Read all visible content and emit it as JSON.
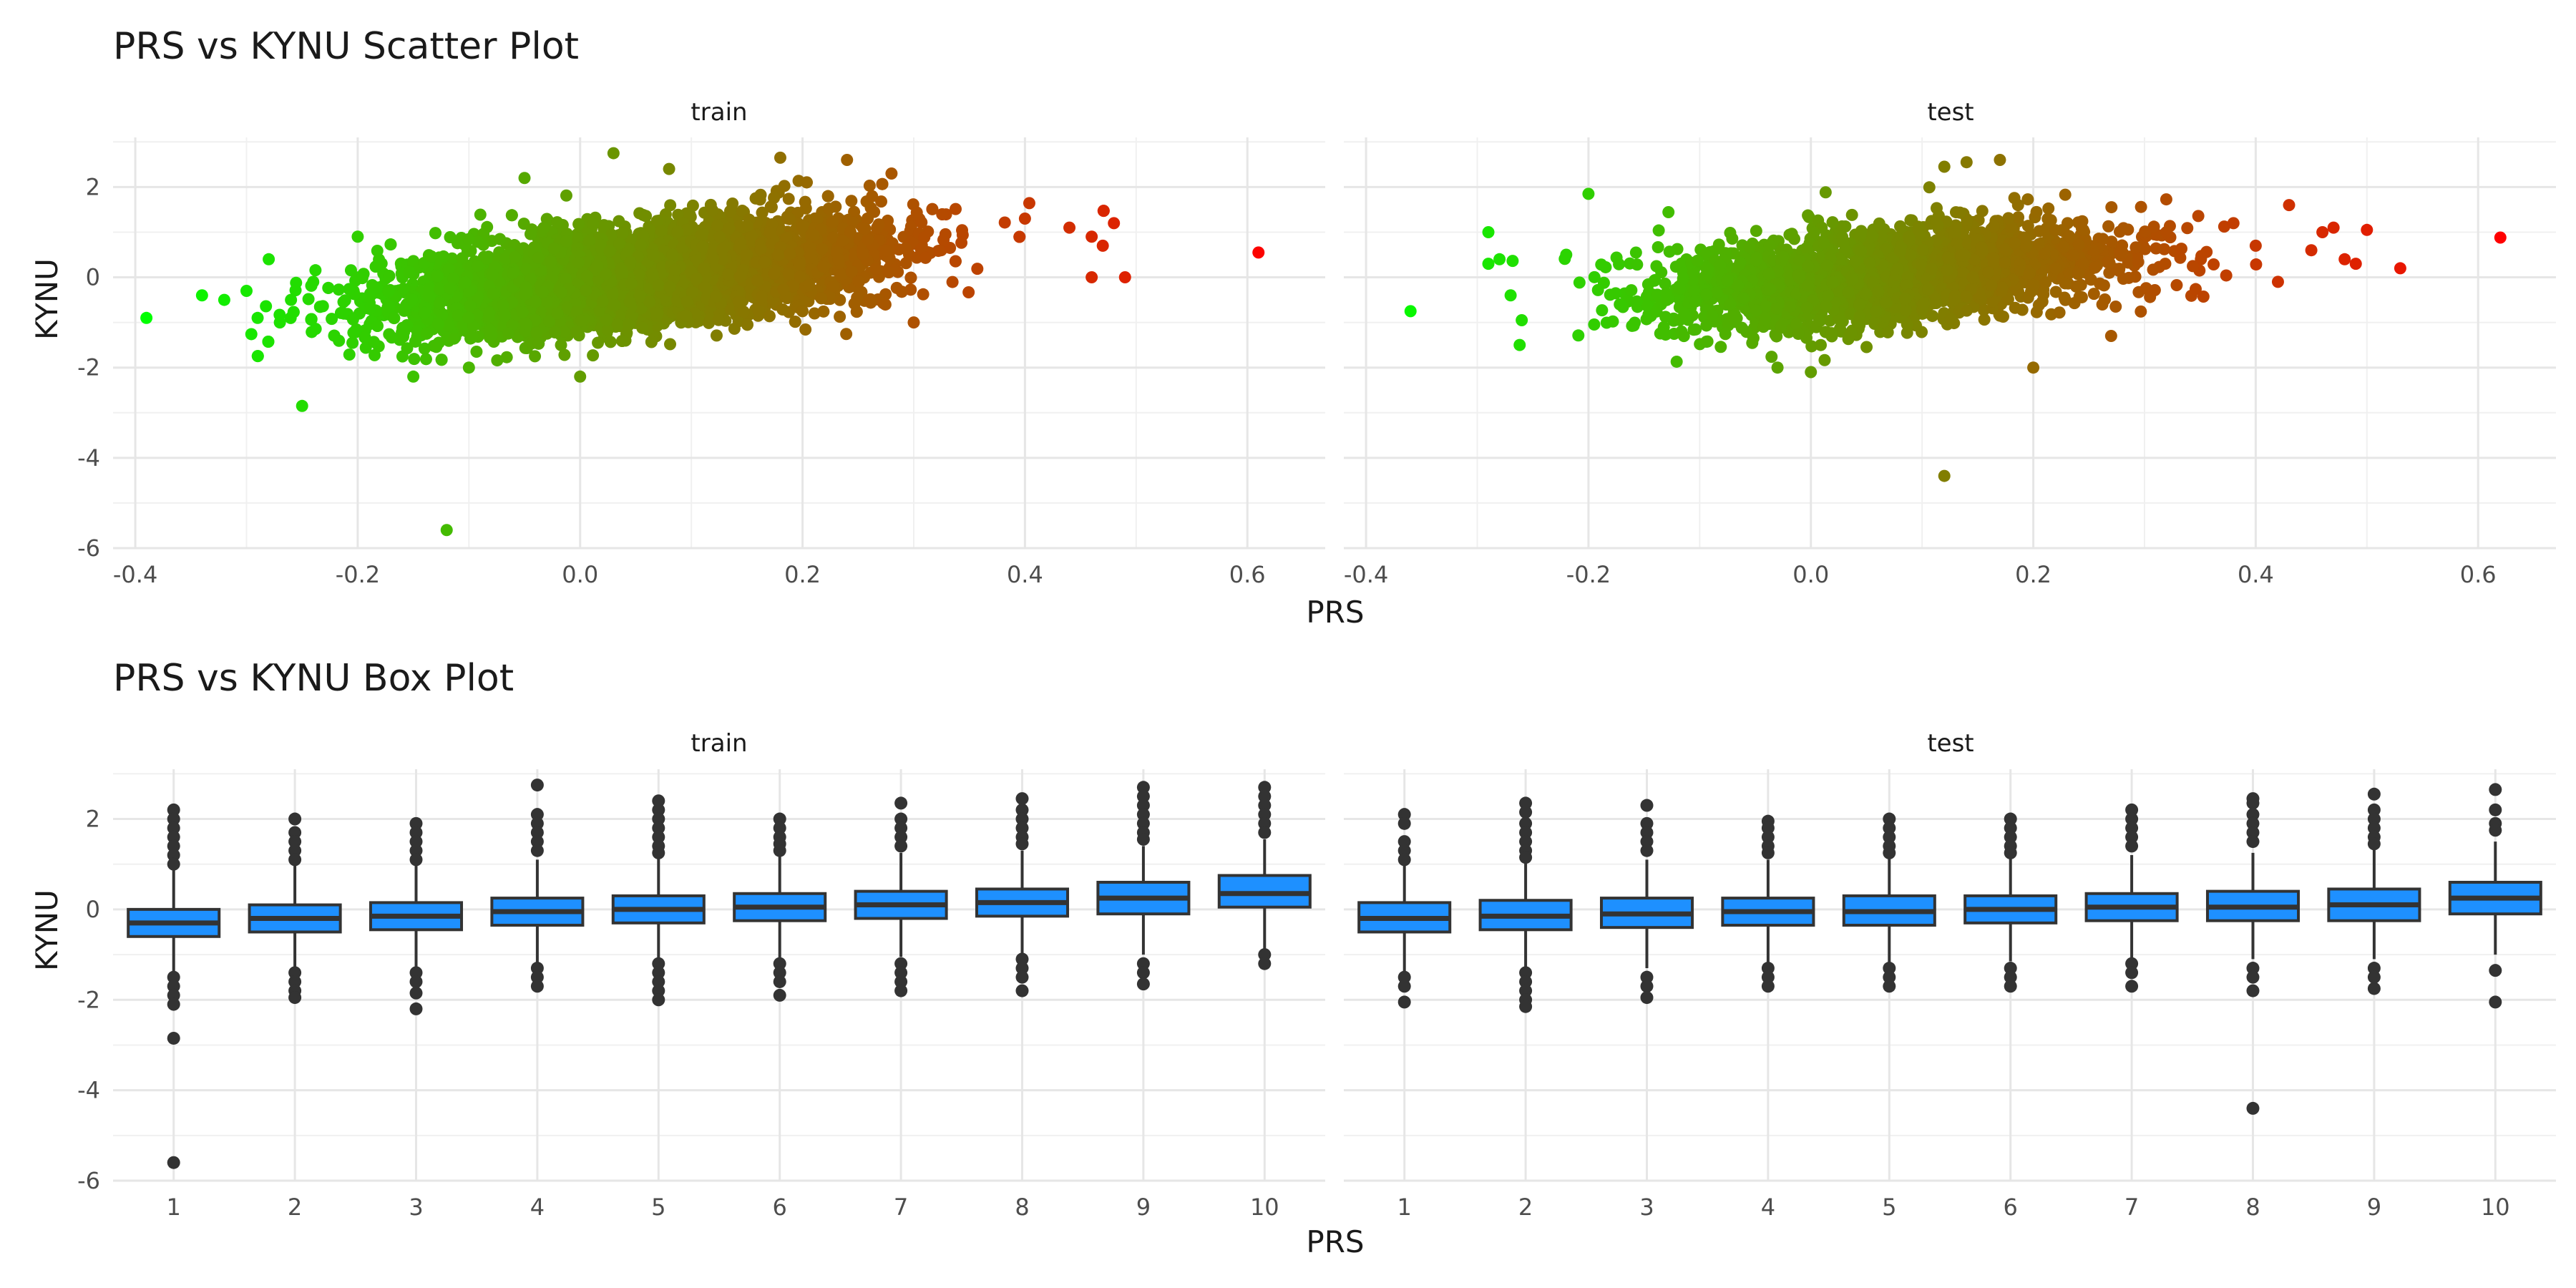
{
  "chart_data": [
    {
      "type": "scatter",
      "title": "PRS vs KYNU Scatter Plot",
      "xlabel": "PRS",
      "ylabel": "KYNU",
      "facets": [
        "train",
        "test"
      ],
      "xlim": [
        -0.42,
        0.67
      ],
      "ylim": [
        -6.0,
        3.1
      ],
      "x_ticks": [
        -0.4,
        -0.2,
        0.0,
        0.2,
        0.4,
        0.6
      ],
      "x_tick_labels": [
        "-0.4",
        "-0.2",
        "0.0",
        "0.2",
        "0.4",
        "0.6"
      ],
      "y_ticks": [
        -6,
        -4,
        -2,
        0,
        2
      ],
      "y_tick_labels": [
        "-6",
        "-4",
        "-2",
        "0",
        "2"
      ],
      "grid": true,
      "color_scale": {
        "low": "#00ff00",
        "high": "#ff0000",
        "domain": [
          -0.39,
          0.62
        ]
      },
      "series": [
        {
          "points": [
            [
              -0.39,
              -0.9
            ],
            [
              -0.34,
              -0.4
            ],
            [
              -0.32,
              -0.5
            ],
            [
              -0.3,
              -0.3
            ],
            [
              -0.29,
              -0.9
            ],
            [
              -0.28,
              0.4
            ],
            [
              -0.27,
              -1.0
            ],
            [
              -0.26,
              -0.5
            ],
            [
              -0.25,
              -2.85
            ],
            [
              -0.24,
              -0.1
            ],
            [
              -0.12,
              -5.6
            ],
            [
              -0.15,
              -2.2
            ],
            [
              -0.2,
              0.9
            ],
            [
              -0.1,
              -2.0
            ],
            [
              -0.05,
              2.2
            ],
            [
              0.03,
              2.75
            ],
            [
              0.08,
              2.4
            ],
            [
              0.18,
              2.65
            ],
            [
              0.24,
              2.6
            ],
            [
              0.28,
              2.3
            ],
            [
              0.3,
              -1.0
            ],
            [
              0.0,
              -2.2
            ],
            [
              0.4,
              1.3
            ],
            [
              0.44,
              1.1
            ],
            [
              0.46,
              0.9
            ],
            [
              0.47,
              0.7
            ],
            [
              0.48,
              1.2
            ],
            [
              0.49,
              0.0
            ],
            [
              0.46,
              0.0
            ],
            [
              0.61,
              0.55
            ]
          ],
          "cloud": {
            "x_mean": 0.05,
            "x_sd": 0.11,
            "slope": 2.5,
            "noise_sd": 0.52,
            "count": 5200
          }
        },
        {
          "points": [
            [
              -0.36,
              -0.75
            ],
            [
              -0.29,
              1.0
            ],
            [
              -0.29,
              0.3
            ],
            [
              -0.28,
              0.4
            ],
            [
              -0.27,
              -0.4
            ],
            [
              -0.26,
              -0.95
            ],
            [
              -0.2,
              1.85
            ],
            [
              -0.22,
              0.5
            ],
            [
              0.12,
              -4.4
            ],
            [
              -0.03,
              -2.0
            ],
            [
              0.0,
              -2.1
            ],
            [
              0.2,
              -2.0
            ],
            [
              0.27,
              -1.3
            ],
            [
              0.14,
              2.55
            ],
            [
              0.17,
              2.6
            ],
            [
              0.12,
              2.45
            ],
            [
              0.38,
              1.2
            ],
            [
              0.4,
              0.7
            ],
            [
              0.43,
              1.6
            ],
            [
              0.45,
              0.6
            ],
            [
              0.46,
              1.0
            ],
            [
              0.47,
              1.1
            ],
            [
              0.48,
              0.4
            ],
            [
              0.49,
              0.3
            ],
            [
              0.5,
              1.05
            ],
            [
              0.53,
              0.2
            ],
            [
              0.42,
              -0.1
            ],
            [
              0.62,
              0.88
            ]
          ],
          "cloud": {
            "x_mean": 0.07,
            "x_sd": 0.1,
            "slope": 2.3,
            "noise_sd": 0.52,
            "count": 2400
          }
        }
      ]
    },
    {
      "type": "box",
      "title": "PRS vs KYNU Box Plot",
      "xlabel": "PRS",
      "ylabel": "KYNU",
      "facets": [
        "train",
        "test"
      ],
      "categories": [
        "1",
        "2",
        "3",
        "4",
        "5",
        "6",
        "7",
        "8",
        "9",
        "10"
      ],
      "ylim": [
        -6.0,
        3.1
      ],
      "y_ticks": [
        -6,
        -4,
        -2,
        0,
        2
      ],
      "y_tick_labels": [
        "-6",
        "-4",
        "-2",
        "0",
        "2"
      ],
      "grid": true,
      "fill": "#1e90ff",
      "stroke": "#333333",
      "series": [
        {
          "boxes": [
            {
              "q1": -0.6,
              "median": -0.3,
              "q3": 0.0,
              "whisker_low": -1.4,
              "whisker_high": 0.9,
              "outliers": [
                2.2,
                2.0,
                1.8,
                1.6,
                1.4,
                1.2,
                1.0,
                -1.5,
                -1.7,
                -1.9,
                -2.1,
                -2.85,
                -5.6
              ]
            },
            {
              "q1": -0.5,
              "median": -0.2,
              "q3": 0.1,
              "whisker_low": -1.3,
              "whisker_high": 1.0,
              "outliers": [
                2.0,
                1.7,
                1.5,
                1.3,
                1.1,
                -1.4,
                -1.6,
                -1.8,
                -1.95
              ]
            },
            {
              "q1": -0.45,
              "median": -0.15,
              "q3": 0.15,
              "whisker_low": -1.3,
              "whisker_high": 1.0,
              "outliers": [
                1.9,
                1.7,
                1.5,
                1.3,
                1.1,
                -1.4,
                -1.6,
                -1.85,
                -2.2
              ]
            },
            {
              "q1": -0.35,
              "median": -0.05,
              "q3": 0.25,
              "whisker_low": -1.2,
              "whisker_high": 1.1,
              "outliers": [
                2.75,
                2.1,
                1.9,
                1.7,
                1.5,
                1.3,
                -1.3,
                -1.5,
                -1.7
              ]
            },
            {
              "q1": -0.3,
              "median": 0.0,
              "q3": 0.3,
              "whisker_low": -1.1,
              "whisker_high": 1.15,
              "outliers": [
                2.4,
                2.2,
                2.0,
                1.8,
                1.6,
                1.4,
                1.25,
                -1.2,
                -1.4,
                -1.6,
                -1.8,
                -2.0
              ]
            },
            {
              "q1": -0.25,
              "median": 0.05,
              "q3": 0.35,
              "whisker_low": -1.1,
              "whisker_high": 1.2,
              "outliers": [
                2.0,
                1.8,
                1.6,
                1.45,
                1.3,
                -1.2,
                -1.4,
                -1.6,
                -1.9
              ]
            },
            {
              "q1": -0.2,
              "median": 0.1,
              "q3": 0.4,
              "whisker_low": -1.05,
              "whisker_high": 1.25,
              "outliers": [
                2.35,
                2.0,
                1.8,
                1.6,
                1.4,
                -1.2,
                -1.4,
                -1.6,
                -1.8
              ]
            },
            {
              "q1": -0.15,
              "median": 0.15,
              "q3": 0.45,
              "whisker_low": -1.0,
              "whisker_high": 1.3,
              "outliers": [
                2.45,
                2.2,
                2.0,
                1.8,
                1.6,
                1.45,
                -1.1,
                -1.3,
                -1.5,
                -1.8
              ]
            },
            {
              "q1": -0.1,
              "median": 0.25,
              "q3": 0.6,
              "whisker_low": -1.0,
              "whisker_high": 1.4,
              "outliers": [
                2.7,
                2.5,
                2.3,
                2.1,
                1.9,
                1.7,
                1.55,
                -1.2,
                -1.4,
                -1.65
              ]
            },
            {
              "q1": 0.05,
              "median": 0.35,
              "q3": 0.75,
              "whisker_low": -0.9,
              "whisker_high": 1.55,
              "outliers": [
                2.7,
                2.5,
                2.3,
                2.1,
                1.9,
                1.7,
                -1.0,
                -1.2
              ]
            }
          ]
        },
        {
          "boxes": [
            {
              "q1": -0.5,
              "median": -0.2,
              "q3": 0.15,
              "whisker_low": -1.4,
              "whisker_high": 1.0,
              "outliers": [
                2.1,
                1.9,
                1.5,
                1.3,
                1.1,
                -1.5,
                -1.7,
                -2.05
              ]
            },
            {
              "q1": -0.45,
              "median": -0.15,
              "q3": 0.2,
              "whisker_low": -1.3,
              "whisker_high": 1.05,
              "outliers": [
                2.35,
                2.15,
                1.9,
                1.7,
                1.5,
                1.3,
                1.15,
                -1.4,
                -1.6,
                -1.8,
                -2.0,
                -2.15
              ]
            },
            {
              "q1": -0.4,
              "median": -0.1,
              "q3": 0.25,
              "whisker_low": -1.3,
              "whisker_high": 1.1,
              "outliers": [
                2.3,
                1.9,
                1.7,
                1.5,
                1.3,
                -1.5,
                -1.7,
                -1.95
              ]
            },
            {
              "q1": -0.35,
              "median": -0.05,
              "q3": 0.25,
              "whisker_low": -1.2,
              "whisker_high": 1.1,
              "outliers": [
                1.95,
                1.8,
                1.6,
                1.4,
                1.25,
                -1.3,
                -1.5,
                -1.7
              ]
            },
            {
              "q1": -0.35,
              "median": -0.05,
              "q3": 0.3,
              "whisker_low": -1.2,
              "whisker_high": 1.15,
              "outliers": [
                2.0,
                1.8,
                1.6,
                1.4,
                1.25,
                -1.3,
                -1.5,
                -1.7
              ]
            },
            {
              "q1": -0.3,
              "median": 0.0,
              "q3": 0.3,
              "whisker_low": -1.15,
              "whisker_high": 1.15,
              "outliers": [
                2.0,
                1.8,
                1.6,
                1.4,
                1.25,
                -1.3,
                -1.5,
                -1.7
              ]
            },
            {
              "q1": -0.25,
              "median": 0.05,
              "q3": 0.35,
              "whisker_low": -1.1,
              "whisker_high": 1.2,
              "outliers": [
                2.2,
                2.0,
                1.8,
                1.6,
                1.4,
                -1.2,
                -1.4,
                -1.7
              ]
            },
            {
              "q1": -0.25,
              "median": 0.05,
              "q3": 0.4,
              "whisker_low": -1.1,
              "whisker_high": 1.25,
              "outliers": [
                2.45,
                2.35,
                2.1,
                1.9,
                1.7,
                1.5,
                -1.3,
                -1.5,
                -1.8,
                -4.4
              ]
            },
            {
              "q1": -0.25,
              "median": 0.1,
              "q3": 0.45,
              "whisker_low": -1.1,
              "whisker_high": 1.35,
              "outliers": [
                2.55,
                2.2,
                2.0,
                1.8,
                1.6,
                1.45,
                -1.3,
                -1.5,
                -1.75
              ]
            },
            {
              "q1": -0.1,
              "median": 0.25,
              "q3": 0.6,
              "whisker_low": -1.0,
              "whisker_high": 1.5,
              "outliers": [
                2.65,
                2.2,
                1.9,
                1.75,
                -1.35,
                -2.05
              ]
            }
          ]
        }
      ]
    }
  ]
}
